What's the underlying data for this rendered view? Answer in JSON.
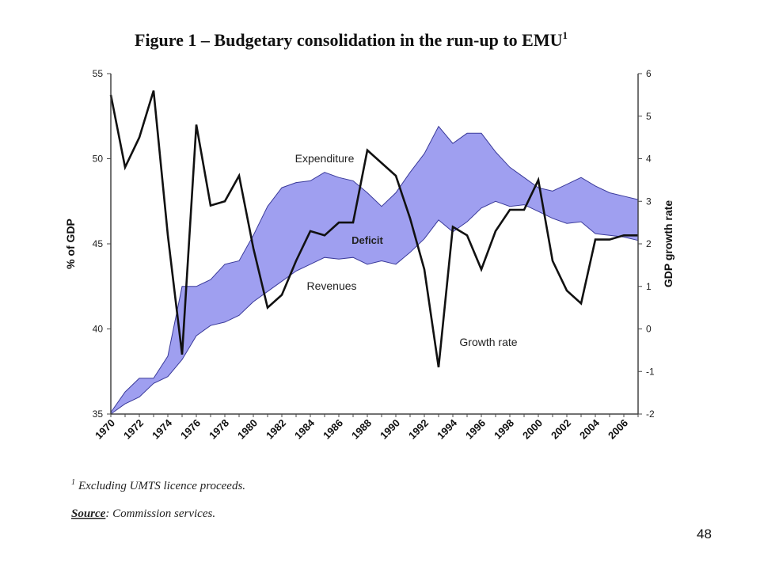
{
  "chart_data": {
    "type": "area",
    "title": "Figure 1 – Budgetary consolidation in the run-up to EMU",
    "title_superscript": "1",
    "ylabel": "% of GDP",
    "y2label": "GDP growth rate",
    "ylim": [
      35,
      55
    ],
    "y2lim": [
      -2,
      6
    ],
    "yticks": [
      35,
      40,
      45,
      50,
      55
    ],
    "y2ticks": [
      -2,
      -1,
      0,
      1,
      2,
      3,
      4,
      5,
      6
    ],
    "xlim": [
      1970,
      2007
    ],
    "xticks": [
      "1970",
      "1972",
      "1974",
      "1976",
      "1978",
      "1980",
      "1982",
      "1984",
      "1986",
      "1988",
      "1990",
      "1992",
      "1994",
      "1996",
      "1998",
      "2000",
      "2002",
      "2004",
      "2006"
    ],
    "x": [
      1970,
      1971,
      1972,
      1973,
      1974,
      1975,
      1976,
      1977,
      1978,
      1979,
      1980,
      1981,
      1982,
      1983,
      1984,
      1985,
      1986,
      1987,
      1988,
      1989,
      1990,
      1991,
      1992,
      1993,
      1994,
      1995,
      1996,
      1997,
      1998,
      1999,
      2000,
      2001,
      2002,
      2003,
      2004,
      2005,
      2006,
      2007
    ],
    "series": [
      {
        "name": "Expenditure",
        "axis": "left",
        "values": [
          35.1,
          36.3,
          37.1,
          37.1,
          38.4,
          42.5,
          42.5,
          42.9,
          43.8,
          44.0,
          45.5,
          47.2,
          48.3,
          48.6,
          48.7,
          49.2,
          48.9,
          48.7,
          48.0,
          47.2,
          48.0,
          49.2,
          50.3,
          51.9,
          50.9,
          51.5,
          51.5,
          50.4,
          49.5,
          48.9,
          48.3,
          48.1,
          48.5,
          48.9,
          48.4,
          48.0,
          47.8,
          47.6
        ]
      },
      {
        "name": "Revenues",
        "axis": "left",
        "values": [
          35.0,
          35.6,
          36.0,
          36.8,
          37.2,
          38.2,
          39.6,
          40.2,
          40.4,
          40.8,
          41.6,
          42.2,
          42.8,
          43.4,
          43.8,
          44.2,
          44.1,
          44.2,
          43.8,
          44.0,
          43.8,
          44.5,
          45.3,
          46.4,
          45.7,
          46.3,
          47.1,
          47.5,
          47.2,
          47.3,
          46.9,
          46.5,
          46.2,
          46.3,
          45.6,
          45.5,
          45.4,
          45.2
        ]
      },
      {
        "name": "Growth rate",
        "axis": "right",
        "values": [
          5.5,
          3.8,
          4.5,
          5.6,
          2.2,
          -0.6,
          4.8,
          2.9,
          3.0,
          3.6,
          1.9,
          0.5,
          0.8,
          1.6,
          2.3,
          2.2,
          2.5,
          2.5,
          4.2,
          3.9,
          3.6,
          2.6,
          1.4,
          -0.9,
          2.4,
          2.2,
          1.4,
          2.3,
          2.8,
          2.8,
          3.5,
          1.6,
          0.9,
          0.6,
          2.1,
          2.1,
          2.2,
          2.2
        ]
      }
    ],
    "annotations": [
      {
        "text": "Expenditure",
        "x": 1985,
        "y": 49.8,
        "axis": "left"
      },
      {
        "text": "Deficit",
        "x": 1988,
        "y": 45.0,
        "axis": "left",
        "bold": true
      },
      {
        "text": "Revenues",
        "x": 1985.5,
        "y": 42.3,
        "axis": "left"
      },
      {
        "text": "Growth rate",
        "x": 1996.5,
        "y": -0.4,
        "axis": "right"
      }
    ],
    "colors": {
      "deficit_fill": "#9f9ff0",
      "line": "#111111",
      "axis": "#444444"
    },
    "grid": false
  },
  "footnote": {
    "marker": "1",
    "text": "Excluding UMTS licence proceeds.",
    "source_label": "Source",
    "source_text": ": Commission services."
  },
  "page_number": "48"
}
